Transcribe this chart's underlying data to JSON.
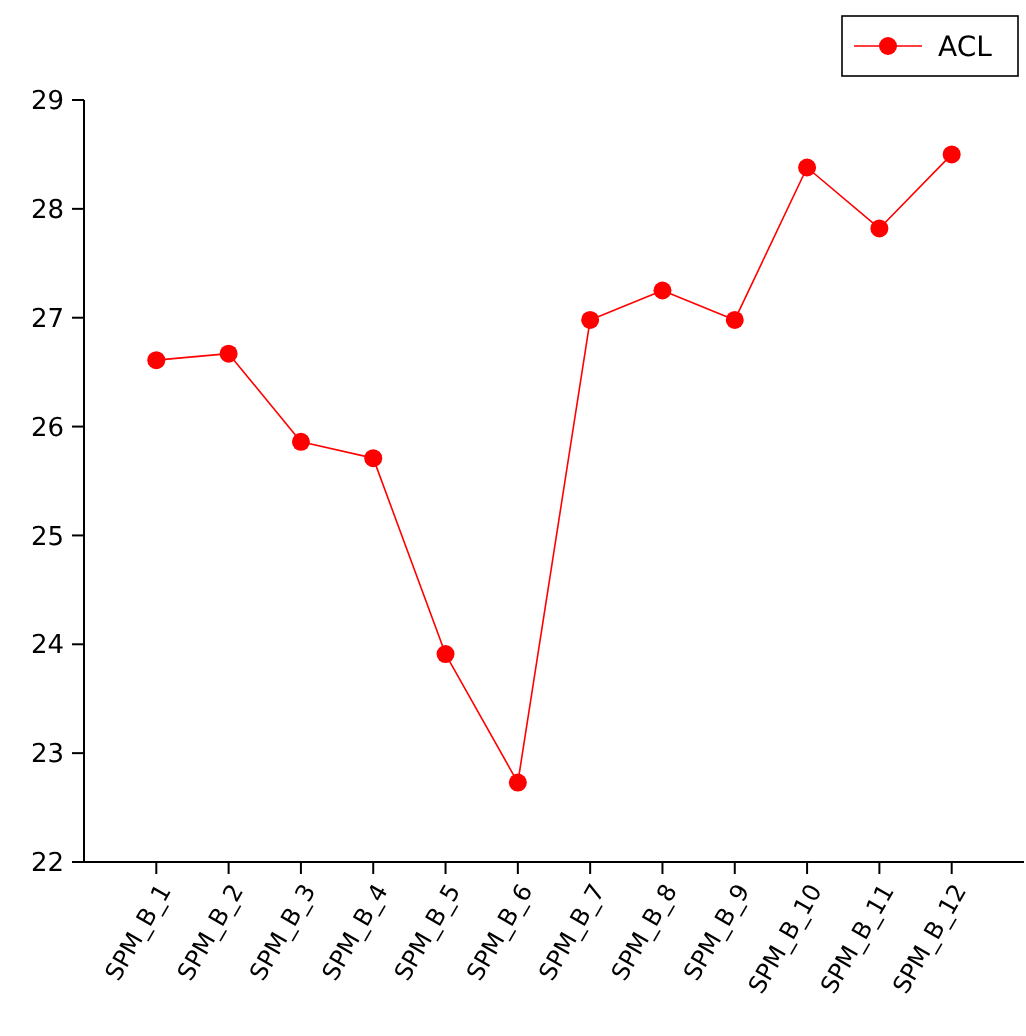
{
  "chart_data": {
    "type": "line",
    "categories": [
      "SPM_B_1",
      "SPM_B_2",
      "SPM_B_3",
      "SPM_B_4",
      "SPM_B_5",
      "SPM_B_6",
      "SPM_B_7",
      "SPM_B_8",
      "SPM_B_9",
      "SPM_B_10",
      "SPM_B_11",
      "SPM_B_12"
    ],
    "series": [
      {
        "name": "ACL",
        "color": "#ff0000",
        "values": [
          26.61,
          26.67,
          25.86,
          25.71,
          23.91,
          22.73,
          26.98,
          27.25,
          26.98,
          28.38,
          27.82,
          28.5
        ]
      }
    ],
    "ylim": [
      22,
      29
    ],
    "yticks": [
      22,
      23,
      24,
      25,
      26,
      27,
      28,
      29
    ],
    "grid": false,
    "legend": "top right",
    "marker": "circle",
    "line_style": "solid"
  }
}
